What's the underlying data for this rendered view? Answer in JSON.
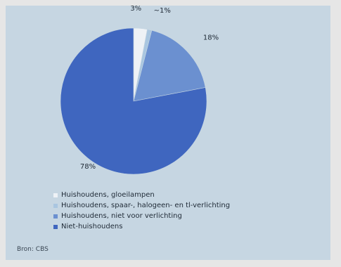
{
  "chart_data": {
    "type": "pie",
    "slices": [
      {
        "label": "Huishoudens, gloeilampen",
        "value": 3,
        "display": "3%",
        "color": "#eef2f6"
      },
      {
        "label": "Huishoudens, spaar-, halogeen- en tl-verlichting",
        "value": 1,
        "display": "~1%",
        "color": "#a9c6e0"
      },
      {
        "label": "Huishoudens, niet voor verlichting",
        "value": 18,
        "display": "18%",
        "color": "#6b90d0"
      },
      {
        "label": "Niet-huishoudens",
        "value": 78,
        "display": "78%",
        "color": "#3f66bf"
      }
    ],
    "legend_position": "bottom-left"
  },
  "source": "Bron: CBS"
}
